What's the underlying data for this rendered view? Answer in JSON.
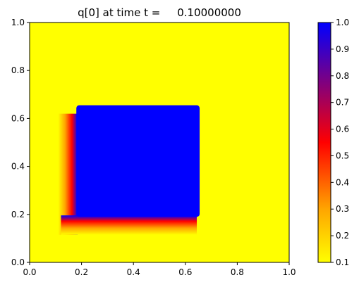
{
  "chart_data": {
    "type": "heatmap",
    "title": "q[0] at time t =     0.10000000",
    "xlabel": "",
    "ylabel": "",
    "xlim": [
      0.0,
      1.0
    ],
    "ylim": [
      0.0,
      1.0
    ],
    "x_ticks": [
      "0.0",
      "0.2",
      "0.4",
      "0.6",
      "0.8",
      "1.0"
    ],
    "y_ticks": [
      "0.0",
      "0.2",
      "0.4",
      "0.6",
      "0.8",
      "1.0"
    ],
    "grid": false,
    "background_value": 0.1,
    "colorbar": {
      "min": 0.1,
      "max": 1.0,
      "ticks": [
        "0.1",
        "0.2",
        "0.3",
        "0.4",
        "0.5",
        "0.6",
        "0.7",
        "0.8",
        "0.9",
        "1.0"
      ],
      "colors": [
        {
          "at": 0.1,
          "color": "#ffff00"
        },
        {
          "at": 0.3,
          "color": "#ffa500"
        },
        {
          "at": 0.55,
          "color": "#ff0000"
        },
        {
          "at": 1.0,
          "color": "#0000ff"
        }
      ]
    },
    "region": {
      "description_value": 1.0,
      "x_range": [
        0.18,
        0.655
      ],
      "y_range": [
        0.19,
        0.655
      ],
      "smeared_edge_x_range": [
        0.11,
        0.18
      ],
      "smeared_edge_y_range": [
        0.115,
        0.19
      ]
    }
  }
}
